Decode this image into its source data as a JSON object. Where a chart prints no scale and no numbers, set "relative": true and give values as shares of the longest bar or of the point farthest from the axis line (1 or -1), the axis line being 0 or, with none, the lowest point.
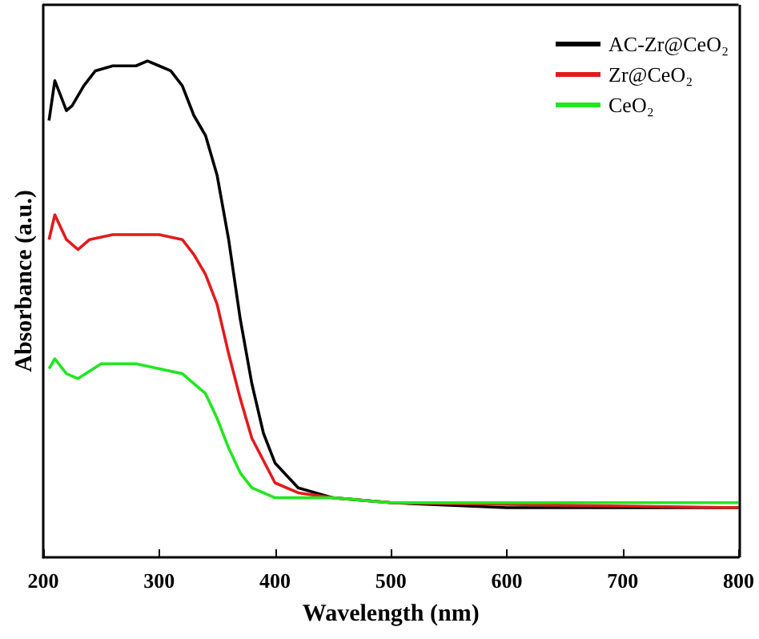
{
  "chart_data": {
    "type": "line",
    "xlabel": "Wavelength (nm)",
    "ylabel": "Absorbance (a.u.)",
    "relative": true,
    "tick_labels": "x",
    "legend": "top right",
    "grid": false,
    "marker": "none",
    "line_style": "solid",
    "xlim": [
      200,
      800
    ],
    "xticks": [
      200,
      300,
      400,
      500,
      600,
      700,
      800
    ],
    "series": [
      {
        "name": "AC-Zr@CeO₂",
        "color": "#000000",
        "x": [
          205,
          210,
          215,
          220,
          225,
          235,
          245,
          260,
          280,
          290,
          300,
          310,
          320,
          330,
          340,
          350,
          360,
          370,
          380,
          390,
          400,
          420,
          450,
          500,
          600,
          700,
          800
        ],
        "values": [
          0.88,
          0.96,
          0.93,
          0.9,
          0.91,
          0.95,
          0.98,
          0.99,
          0.99,
          1.0,
          0.99,
          0.98,
          0.95,
          0.89,
          0.85,
          0.77,
          0.64,
          0.48,
          0.35,
          0.25,
          0.19,
          0.14,
          0.12,
          0.11,
          0.1,
          0.1,
          0.1
        ]
      },
      {
        "name": "Zr@CeO₂",
        "color": "#e31a1c",
        "x": [
          205,
          210,
          220,
          230,
          240,
          260,
          280,
          300,
          320,
          330,
          340,
          350,
          360,
          370,
          380,
          400,
          420,
          450,
          500,
          800
        ],
        "values": [
          0.64,
          0.69,
          0.64,
          0.62,
          0.64,
          0.65,
          0.65,
          0.65,
          0.64,
          0.61,
          0.57,
          0.51,
          0.41,
          0.32,
          0.24,
          0.15,
          0.13,
          0.12,
          0.11,
          0.1
        ]
      },
      {
        "name": "CeO₂",
        "color": "#22e622",
        "x": [
          205,
          210,
          220,
          230,
          250,
          280,
          300,
          320,
          330,
          340,
          350,
          360,
          370,
          380,
          400,
          450,
          500,
          800
        ],
        "values": [
          0.38,
          0.4,
          0.37,
          0.36,
          0.39,
          0.39,
          0.38,
          0.37,
          0.35,
          0.33,
          0.28,
          0.22,
          0.17,
          0.14,
          0.12,
          0.12,
          0.11,
          0.11
        ]
      }
    ]
  }
}
